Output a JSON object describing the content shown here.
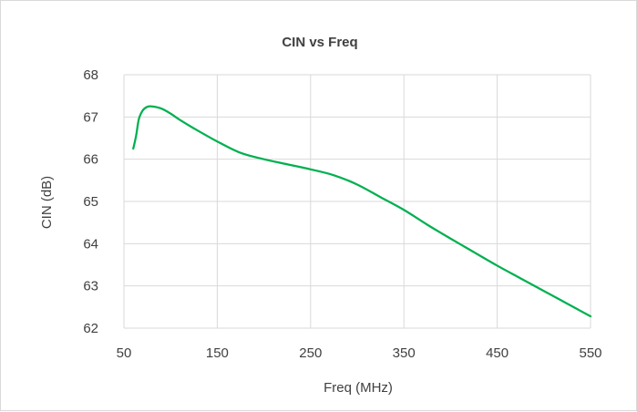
{
  "chart_data": {
    "type": "line",
    "title": "CIN vs Freq",
    "xlabel": "Freq (MHz)",
    "ylabel": "CIN (dB)",
    "xlim": [
      50,
      550
    ],
    "ylim": [
      62,
      68
    ],
    "xticks": [
      50,
      150,
      250,
      350,
      450,
      550
    ],
    "yticks": [
      62,
      63,
      64,
      65,
      66,
      67,
      68
    ],
    "grid": true,
    "legend": "none",
    "series": [
      {
        "color": "#00b050",
        "x": [
          60,
          63,
          66,
          70,
          75,
          80,
          90,
          100,
          110,
          125,
          150,
          175,
          200,
          225,
          250,
          275,
          300,
          325,
          350,
          375,
          400,
          425,
          450,
          475,
          500,
          525,
          550
        ],
        "y": [
          66.25,
          66.55,
          66.95,
          67.15,
          67.24,
          67.25,
          67.2,
          67.08,
          66.93,
          66.73,
          66.42,
          66.15,
          66.0,
          65.88,
          65.76,
          65.62,
          65.4,
          65.1,
          64.8,
          64.45,
          64.12,
          63.8,
          63.48,
          63.18,
          62.88,
          62.58,
          62.28
        ]
      }
    ]
  }
}
